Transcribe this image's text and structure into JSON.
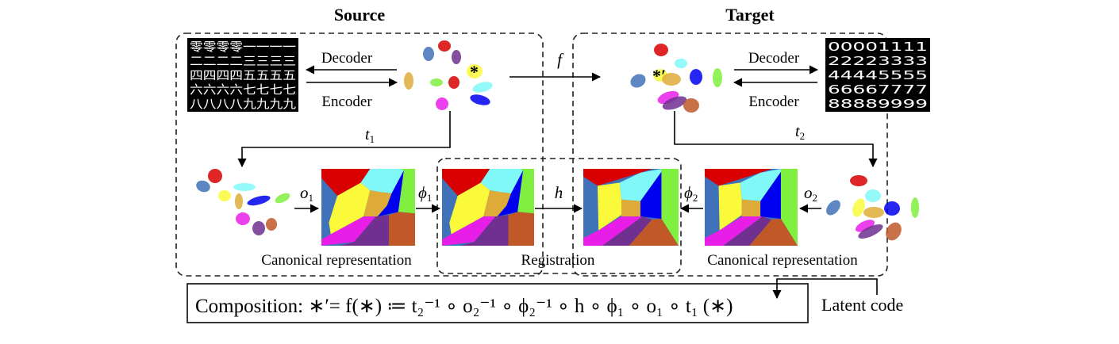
{
  "titles": {
    "source": "Source",
    "target": "Target"
  },
  "labels": {
    "decoder": "Decoder",
    "encoder": "Encoder",
    "f": "f",
    "t1": "t",
    "t1_sub": "1",
    "t2": "t",
    "t2_sub": "2",
    "o1": "o",
    "o1_sub": "1",
    "o2": "o",
    "o2_sub": "2",
    "phi1": "ϕ",
    "phi1_sub": "1",
    "phi2": "ϕ",
    "phi2_sub": "2",
    "h": "h",
    "star": "*",
    "star_prime": "*′",
    "canonical": "Canonical representation",
    "registration": "Registration",
    "latent_code": "Latent code"
  },
  "composition": "Composition: ∗′= f(∗) ≔ t₂⁻¹ ∘ o₂⁻¹ ∘ ϕ₂⁻¹ ∘ h ∘ ϕ₁ ∘ o₁ ∘ t₁ (∗)",
  "source_digits": [
    "零零零零一一一一",
    "二二二二三三三三",
    "四四四四五五五五",
    "六六六六七七七七",
    "八八八八九九九九"
  ],
  "target_digits": [
    "00001111",
    "22223333",
    "44445555",
    "66667777",
    "88889999"
  ],
  "region_colors": {
    "red": "#d80000",
    "cyan": "#80f8f8",
    "steel_blue": "#3f72b8",
    "yellow": "#fafa3a",
    "orange": "#deab38",
    "blue": "#0000f0",
    "green": "#80f040",
    "magenta": "#e81ee8",
    "purple": "#703090",
    "brown": "#c05828"
  }
}
